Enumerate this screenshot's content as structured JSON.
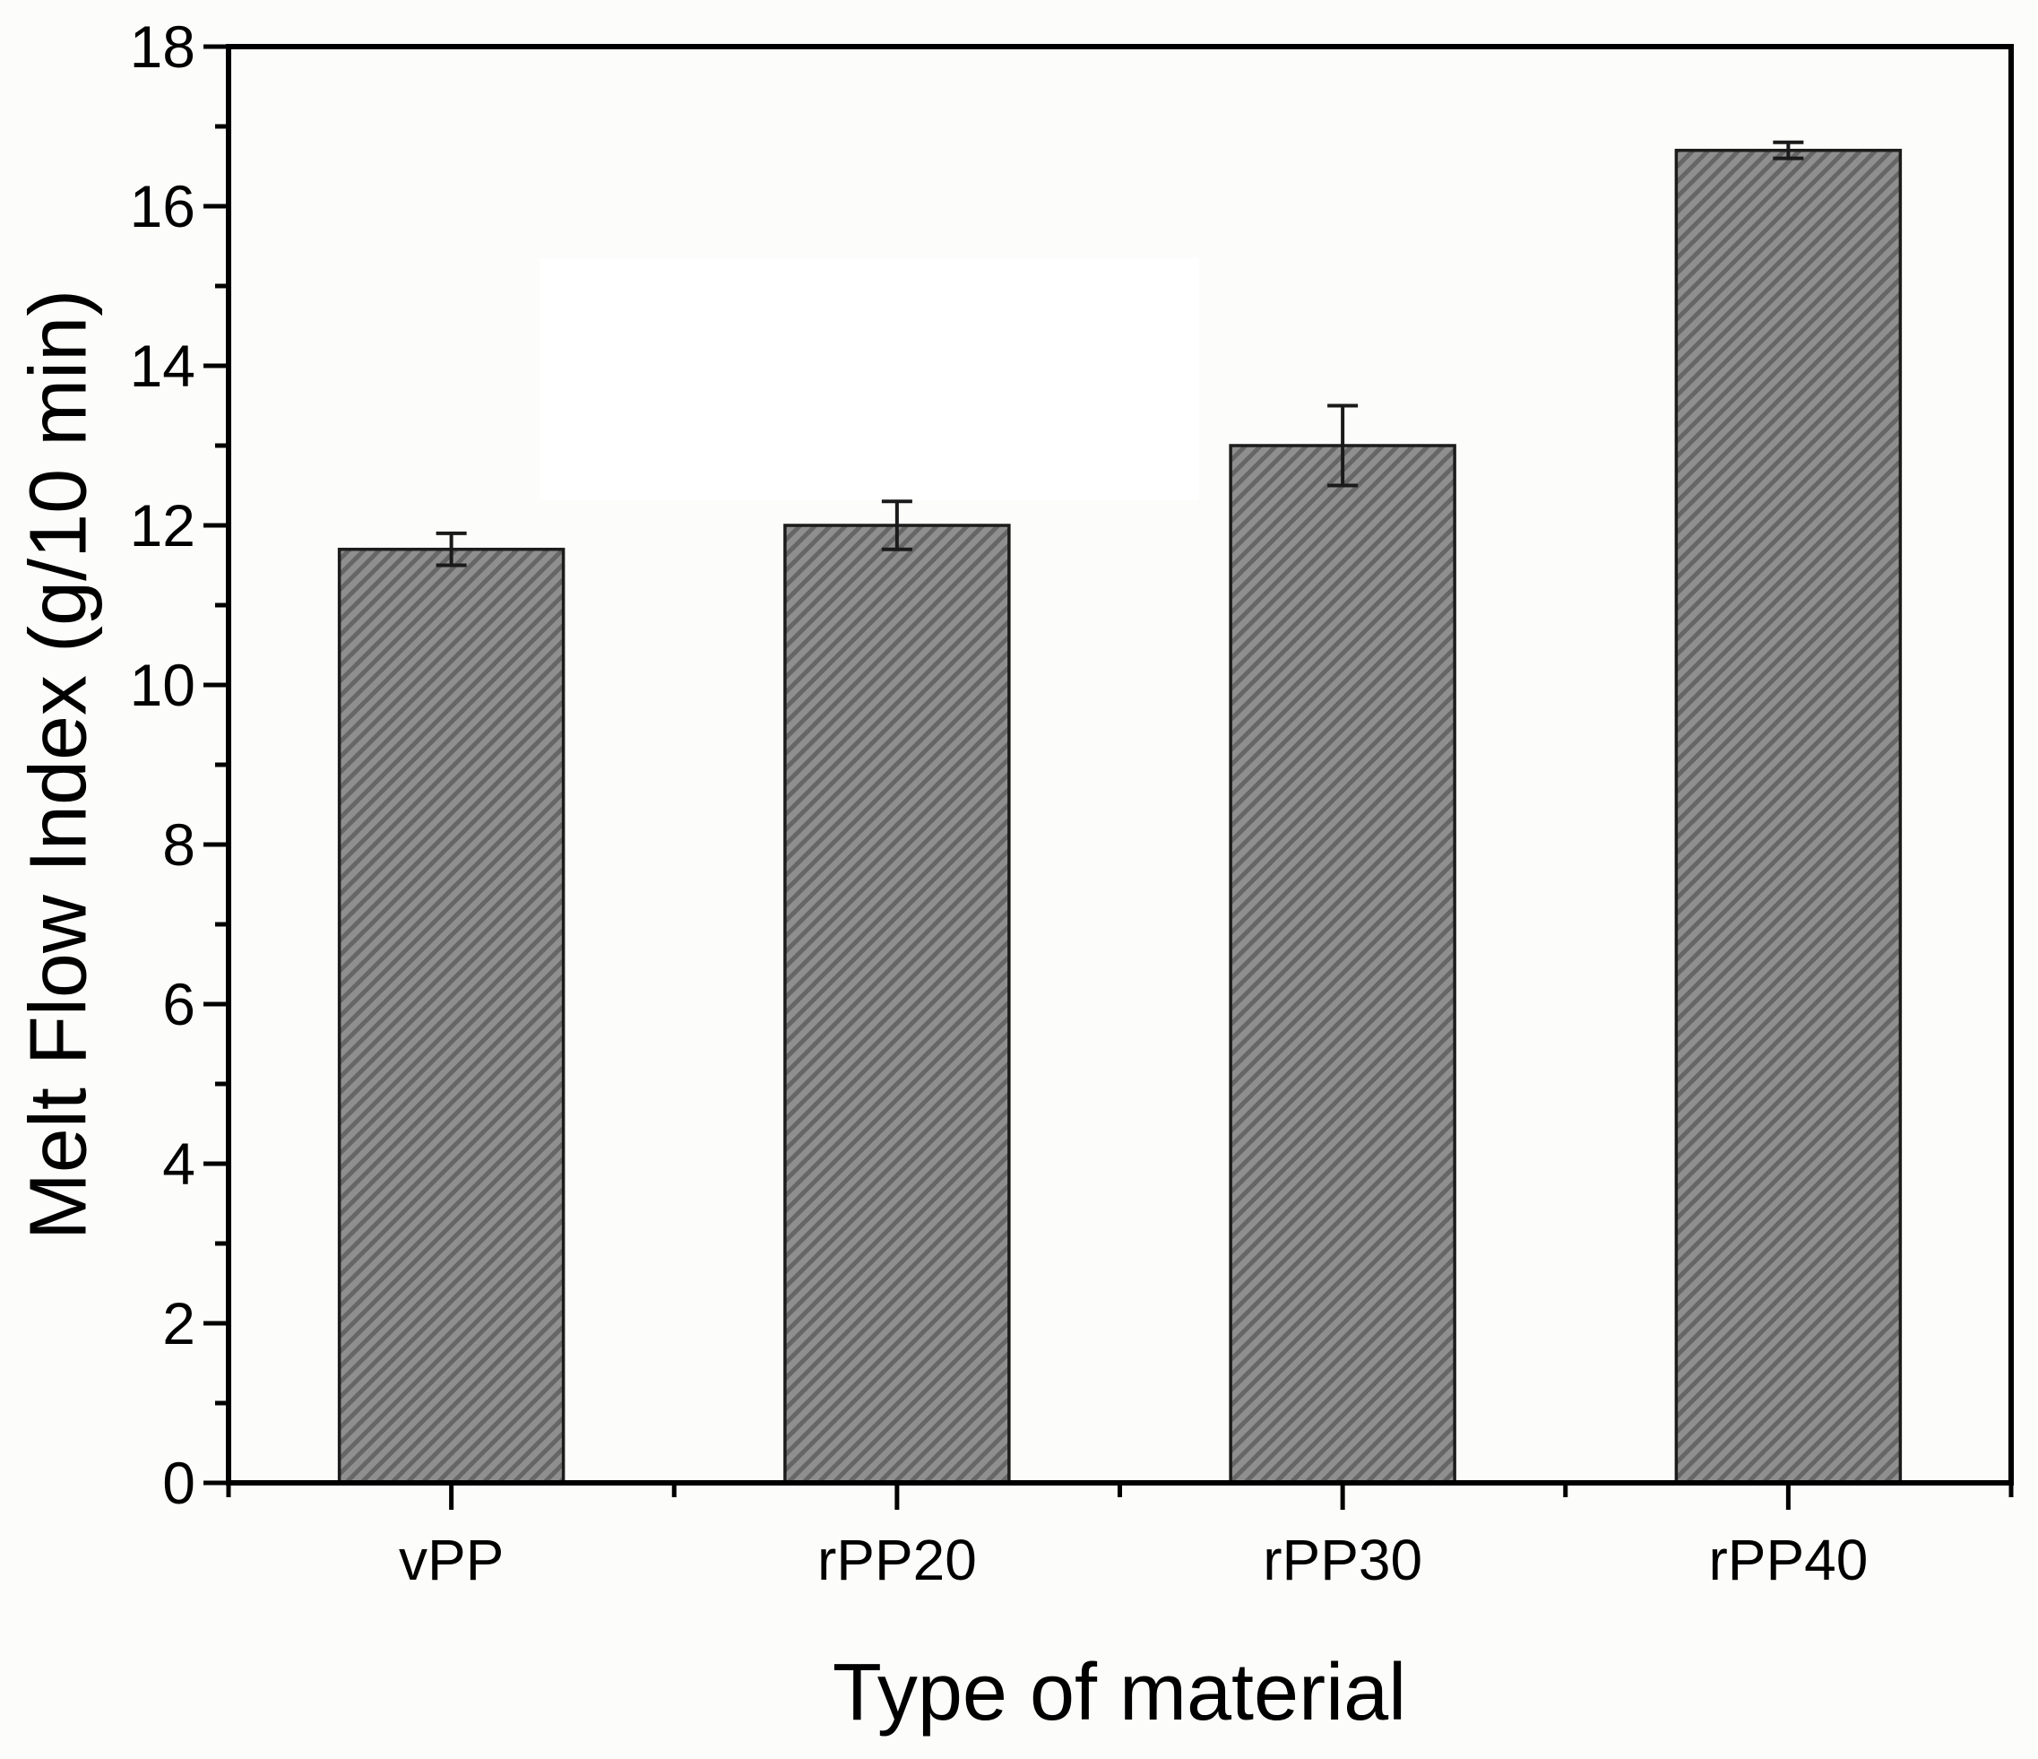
{
  "chart_data": {
    "type": "bar",
    "title": "",
    "xlabel": "Type of material",
    "ylabel": "Melt Flow Index (g/10 min)",
    "categories": [
      "vPP",
      "rPP20",
      "rPP30",
      "rPP40"
    ],
    "values": [
      11.7,
      12.0,
      13.0,
      16.7
    ],
    "error_bars": [
      0.2,
      0.3,
      0.5,
      0.1
    ],
    "ylim": [
      0,
      18
    ],
    "y_major_tick_step": 2,
    "y_minor_tick_step": 1,
    "y_tick_labels": [
      "0",
      "2",
      "4",
      "6",
      "8",
      "10",
      "12",
      "14",
      "16",
      "18"
    ],
    "grid": false,
    "legend_position": "none",
    "bar_style": {
      "fill": "#8f8f8f",
      "hatch": "diagonal-forward",
      "hatch_color": "#666666",
      "edge_color": "#1c1c1c"
    },
    "error_bar_color": "#1a1a1a",
    "axis_color": "#000000",
    "text_color": "#000000",
    "background": "#fcfcfb",
    "background_patch_color": "#ffffff"
  }
}
